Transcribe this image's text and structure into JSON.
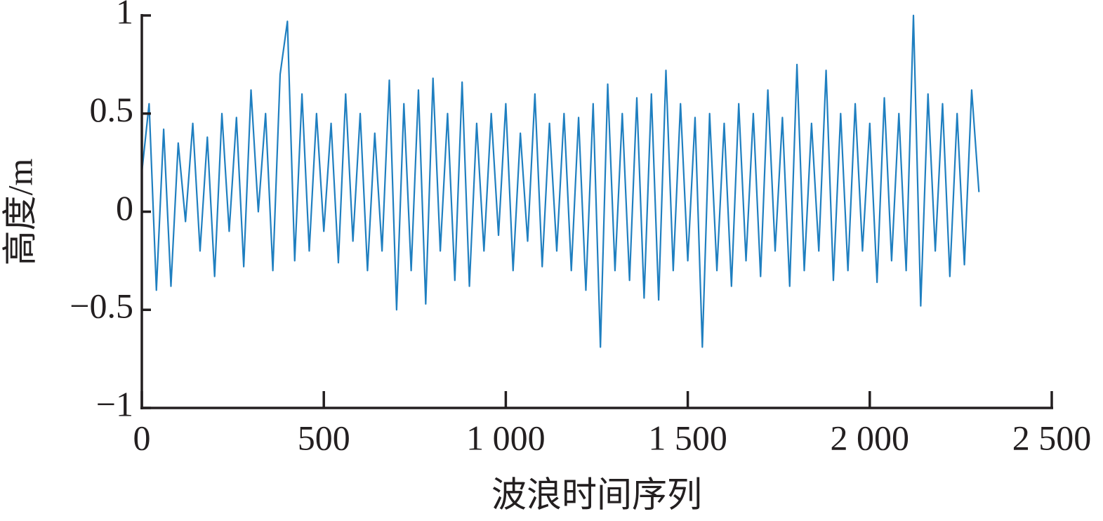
{
  "chart_data": {
    "type": "line",
    "x_label": "波浪时间序列",
    "y_label": "高度/m",
    "x": [
      0,
      20,
      40,
      60,
      80,
      100,
      120,
      140,
      160,
      180,
      200,
      220,
      240,
      260,
      280,
      300,
      320,
      340,
      360,
      380,
      400,
      420,
      440,
      460,
      480,
      500,
      520,
      540,
      560,
      580,
      600,
      620,
      640,
      660,
      680,
      700,
      720,
      740,
      760,
      780,
      800,
      820,
      840,
      860,
      880,
      900,
      920,
      940,
      960,
      980,
      1000,
      1020,
      1040,
      1060,
      1080,
      1100,
      1120,
      1140,
      1160,
      1180,
      1200,
      1220,
      1240,
      1260,
      1280,
      1300,
      1320,
      1340,
      1360,
      1380,
      1400,
      1420,
      1440,
      1460,
      1480,
      1500,
      1520,
      1540,
      1560,
      1580,
      1600,
      1620,
      1640,
      1660,
      1680,
      1700,
      1720,
      1740,
      1760,
      1780,
      1800,
      1820,
      1840,
      1860,
      1880,
      1900,
      1920,
      1940,
      1960,
      1980,
      2000,
      2020,
      2040,
      2060,
      2080,
      2100,
      2120,
      2140,
      2160,
      2180,
      2200,
      2220,
      2240,
      2260,
      2280,
      2300
    ],
    "series": [
      {
        "color": "#1f7fc0",
        "values": [
          0.2,
          0.55,
          -0.4,
          0.42,
          -0.38,
          0.35,
          -0.05,
          0.45,
          -0.2,
          0.38,
          -0.33,
          0.5,
          -0.1,
          0.48,
          -0.28,
          0.62,
          0.0,
          0.5,
          -0.3,
          0.7,
          0.97,
          -0.25,
          0.6,
          -0.2,
          0.5,
          -0.1,
          0.45,
          -0.26,
          0.6,
          -0.15,
          0.5,
          -0.3,
          0.4,
          -0.2,
          0.67,
          -0.5,
          0.55,
          -0.3,
          0.62,
          -0.47,
          0.68,
          -0.2,
          0.5,
          -0.35,
          0.66,
          -0.38,
          0.45,
          -0.2,
          0.5,
          -0.12,
          0.55,
          -0.3,
          0.4,
          -0.15,
          0.6,
          -0.28,
          0.45,
          -0.2,
          0.5,
          -0.3,
          0.48,
          -0.4,
          0.55,
          -0.69,
          0.65,
          -0.3,
          0.5,
          -0.35,
          0.58,
          -0.44,
          0.6,
          -0.45,
          0.72,
          -0.3,
          0.55,
          -0.25,
          0.48,
          -0.69,
          0.5,
          -0.3,
          0.45,
          -0.38,
          0.55,
          -0.25,
          0.5,
          -0.33,
          0.62,
          -0.2,
          0.48,
          -0.38,
          0.75,
          -0.3,
          0.45,
          -0.2,
          0.72,
          -0.35,
          0.5,
          -0.3,
          0.55,
          -0.2,
          0.45,
          -0.36,
          0.58,
          -0.25,
          0.5,
          -0.3,
          1.0,
          -0.48,
          0.6,
          -0.2,
          0.55,
          -0.33,
          0.5,
          -0.27,
          0.62,
          0.1
        ]
      }
    ],
    "xlim": [
      0,
      2500
    ],
    "xticks": [
      0,
      500,
      {
        "value": 1000,
        "label": "1 000"
      },
      {
        "value": 1500,
        "label": "1 500"
      },
      {
        "value": 2000,
        "label": "2 000"
      },
      {
        "value": 2500,
        "label": "2 500"
      }
    ],
    "ylim": [
      -1,
      1
    ],
    "yticks": [
      {
        "value": -1,
        "label": "−1"
      },
      {
        "value": -0.5,
        "label": "−0.5"
      },
      0,
      0.5,
      1
    ]
  }
}
